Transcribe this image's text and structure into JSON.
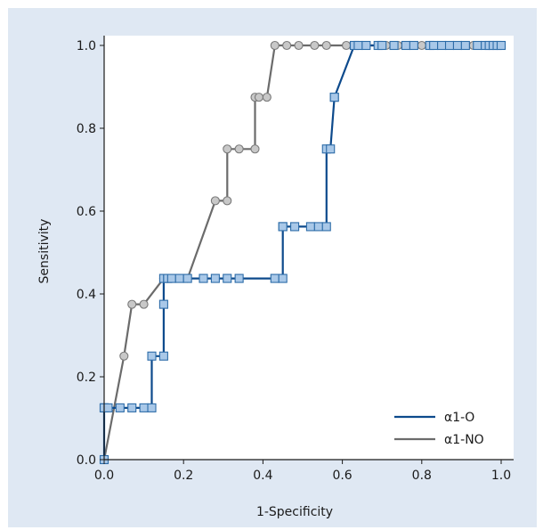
{
  "chart_data": {
    "type": "line",
    "title": "",
    "xlabel": "1-Specificity",
    "ylabel": "Sensitivity",
    "xlim": [
      0,
      1
    ],
    "ylim": [
      0,
      1
    ],
    "x_ticks": [
      "0.0",
      "0.2",
      "0.4",
      "0.6",
      "0.8",
      "1.0"
    ],
    "y_ticks": [
      "0.0",
      "0.2",
      "0.4",
      "0.6",
      "0.8",
      "1.0"
    ],
    "grid": false,
    "legend_position": "bottom-right",
    "series": [
      {
        "name": "α1-O",
        "color": "#0d4a8c",
        "marker": "square",
        "marker_fill": "#a9c8e8",
        "marker_stroke": "#2d6ca8",
        "x": [
          0.0,
          0.0,
          0.0,
          0.01,
          0.04,
          0.07,
          0.1,
          0.12,
          0.12,
          0.15,
          0.15,
          0.15,
          0.16,
          0.16,
          0.17,
          0.19,
          0.21,
          0.25,
          0.28,
          0.31,
          0.34,
          0.43,
          0.45,
          0.45,
          0.45,
          0.48,
          0.52,
          0.54,
          0.56,
          0.56,
          0.57,
          0.58,
          0.58,
          0.63,
          0.64,
          0.66,
          0.69,
          0.7,
          0.73,
          0.76,
          0.78,
          0.82,
          0.83,
          0.85,
          0.87,
          0.89,
          0.91,
          0.94,
          0.96,
          0.97,
          0.98,
          0.99,
          1.0
        ],
        "y": [
          0.0,
          0.125,
          0.125,
          0.125,
          0.125,
          0.125,
          0.125,
          0.125,
          0.25,
          0.25,
          0.375,
          0.4375,
          0.4375,
          0.4375,
          0.4375,
          0.4375,
          0.4375,
          0.4375,
          0.4375,
          0.4375,
          0.4375,
          0.4375,
          0.4375,
          0.5625,
          0.5625,
          0.5625,
          0.5625,
          0.5625,
          0.5625,
          0.75,
          0.75,
          0.875,
          0.875,
          1.0,
          1.0,
          1.0,
          1.0,
          1.0,
          1.0,
          1.0,
          1.0,
          1.0,
          1.0,
          1.0,
          1.0,
          1.0,
          1.0,
          1.0,
          1.0,
          1.0,
          1.0,
          1.0,
          1.0
        ]
      },
      {
        "name": "α1-NO",
        "color": "#6b6b6b",
        "marker": "circle",
        "marker_fill": "#c8c8c8",
        "marker_stroke": "#7a7a7a",
        "x": [
          0.0,
          0.05,
          0.07,
          0.1,
          0.15,
          0.21,
          0.28,
          0.31,
          0.31,
          0.34,
          0.38,
          0.38,
          0.39,
          0.41,
          0.43,
          0.46,
          0.49,
          0.53,
          0.56,
          0.61,
          0.66,
          0.71,
          0.74,
          0.77,
          0.8,
          0.83,
          0.86,
          0.9,
          0.93,
          0.96,
          1.0
        ],
        "y": [
          0.0,
          0.25,
          0.375,
          0.375,
          0.4375,
          0.4375,
          0.625,
          0.625,
          0.75,
          0.75,
          0.75,
          0.875,
          0.875,
          0.875,
          1.0,
          1.0,
          1.0,
          1.0,
          1.0,
          1.0,
          1.0,
          1.0,
          1.0,
          1.0,
          1.0,
          1.0,
          1.0,
          1.0,
          1.0,
          1.0,
          1.0
        ]
      }
    ]
  }
}
